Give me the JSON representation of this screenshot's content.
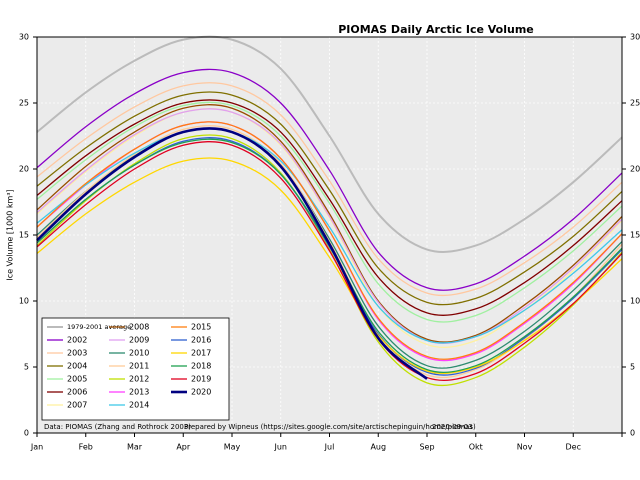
{
  "chart_data": {
    "type": "line",
    "title": "PIOMAS Daily Arctic Ice Volume",
    "y_label": "Ice Volume [1000 km³]",
    "notes": [
      "Data: PIOMAS (Zhang and Rothrock 2003)",
      "Prepared by Wipneus (https://sites.google.com/site/arctischepinguin/home/piomas)",
      "2020-09-03"
    ],
    "categories": [
      "Jan",
      "Feb",
      "Mar",
      "Apr",
      "May",
      "Jun",
      "Jul",
      "Aug",
      "Sep",
      "Okt",
      "Nov",
      "Dec",
      null
    ],
    "ylim": [
      0,
      30
    ],
    "yticks": [
      0,
      5,
      10,
      15,
      20,
      25,
      30
    ],
    "grid": true,
    "series": [
      {
        "name": "1979-2001 average",
        "color": "#bbbbbb",
        "width": 2,
        "values": [
          22.8,
          25.8,
          28.2,
          29.8,
          29.8,
          27.6,
          22.5,
          16.6,
          13.9,
          14.2,
          16.2,
          19.0,
          22.4
        ]
      },
      {
        "name": "2002",
        "color": "#8a00c8",
        "width": 1.3,
        "values": [
          20.1,
          23.2,
          25.7,
          27.3,
          27.3,
          25.0,
          19.9,
          13.7,
          11.0,
          11.3,
          13.4,
          16.2,
          19.7
        ]
      },
      {
        "name": "2003",
        "color": "#ffc8a0",
        "width": 1.3,
        "values": [
          19.4,
          22.3,
          24.7,
          26.3,
          26.3,
          24.1,
          19.1,
          13.2,
          10.6,
          10.9,
          12.9,
          15.6,
          19.0
        ]
      },
      {
        "name": "2004",
        "color": "#807000",
        "width": 1.3,
        "values": [
          18.7,
          21.6,
          24.0,
          25.6,
          25.6,
          23.4,
          18.4,
          12.5,
          9.9,
          10.2,
          12.2,
          14.9,
          18.3
        ]
      },
      {
        "name": "2005",
        "color": "#a0f0a0",
        "width": 1.3,
        "values": [
          17.7,
          20.7,
          23.2,
          24.8,
          24.8,
          22.5,
          17.4,
          11.3,
          8.6,
          8.9,
          11.0,
          13.8,
          17.2
        ]
      },
      {
        "name": "2006",
        "color": "#800000",
        "width": 1.3,
        "values": [
          18.0,
          21.0,
          23.4,
          25.0,
          25.0,
          22.8,
          17.7,
          11.8,
          9.1,
          9.4,
          11.4,
          14.2,
          17.6
        ]
      },
      {
        "name": "2007",
        "color": "#fff0a0",
        "width": 1.3,
        "values": [
          16.6,
          19.8,
          22.5,
          24.3,
          24.3,
          21.8,
          16.3,
          9.6,
          6.7,
          7.0,
          9.3,
          12.3,
          16.1
        ]
      },
      {
        "name": "2008",
        "color": "#994c00",
        "width": 1.3,
        "values": [
          16.9,
          20.2,
          22.8,
          24.6,
          24.6,
          22.1,
          16.6,
          10.0,
          7.1,
          7.4,
          9.7,
          12.7,
          16.4
        ]
      },
      {
        "name": "2009",
        "color": "#e0a0f0",
        "width": 1.3,
        "values": [
          16.7,
          19.9,
          22.6,
          24.3,
          24.3,
          21.9,
          16.4,
          9.9,
          7.0,
          7.3,
          9.5,
          12.5,
          16.2
        ]
      },
      {
        "name": "2010",
        "color": "#2e8b70",
        "width": 1.3,
        "values": [
          15.0,
          18.3,
          21.0,
          22.8,
          22.8,
          20.3,
          14.7,
          8.1,
          5.1,
          5.5,
          7.7,
          10.8,
          14.5
        ]
      },
      {
        "name": "2011",
        "color": "#ffcc99",
        "width": 1.3,
        "values": [
          14.8,
          18.3,
          21.1,
          23.0,
          23.0,
          20.4,
          14.5,
          7.5,
          4.4,
          4.8,
          7.1,
          10.3,
          14.3
        ]
      },
      {
        "name": "2012",
        "color": "#c0e000",
        "width": 1.3,
        "values": [
          14.2,
          17.6,
          20.4,
          22.3,
          22.3,
          19.7,
          13.9,
          6.9,
          3.8,
          4.2,
          6.5,
          9.7,
          13.7
        ]
      },
      {
        "name": "2013",
        "color": "#ff40ff",
        "width": 1.3,
        "values": [
          15.6,
          18.8,
          21.5,
          23.3,
          23.3,
          20.8,
          15.3,
          8.6,
          5.7,
          6.0,
          8.3,
          11.3,
          15.1
        ]
      },
      {
        "name": "2014",
        "color": "#40c8e8",
        "width": 1.3,
        "values": [
          15.9,
          18.8,
          21.2,
          22.8,
          22.8,
          20.6,
          15.6,
          9.6,
          7.0,
          7.3,
          9.3,
          12.1,
          15.4
        ]
      },
      {
        "name": "2015",
        "color": "#ff7f10",
        "width": 1.3,
        "values": [
          15.6,
          18.9,
          21.5,
          23.3,
          23.3,
          20.8,
          15.3,
          8.7,
          5.8,
          6.1,
          8.4,
          11.4,
          15.1
        ]
      },
      {
        "name": "2016",
        "color": "#3060d0",
        "width": 1.3,
        "values": [
          14.4,
          17.7,
          20.3,
          22.1,
          22.1,
          19.6,
          14.1,
          7.5,
          4.6,
          4.9,
          7.2,
          10.2,
          13.9
        ]
      },
      {
        "name": "2017",
        "color": "#ffd700",
        "width": 1.3,
        "values": [
          13.6,
          16.6,
          19.0,
          20.6,
          20.6,
          18.4,
          13.3,
          7.4,
          4.7,
          5.0,
          7.0,
          9.8,
          13.2
        ]
      },
      {
        "name": "2018",
        "color": "#20a050",
        "width": 1.3,
        "values": [
          14.4,
          17.7,
          20.3,
          22.0,
          22.0,
          19.6,
          14.2,
          7.7,
          4.8,
          5.1,
          7.3,
          10.3,
          14.0
        ]
      },
      {
        "name": "2019",
        "color": "#e00020",
        "width": 1.3,
        "values": [
          14.1,
          17.3,
          20.0,
          21.8,
          21.8,
          19.3,
          13.8,
          7.1,
          4.2,
          4.5,
          6.8,
          9.8,
          13.6
        ]
      },
      {
        "name": "2020",
        "color": "#000080",
        "width": 2.6,
        "values": [
          14.6,
          18.1,
          20.9,
          22.8,
          22.8,
          20.2,
          14.3,
          7.2,
          4.1,
          null,
          null,
          null,
          null
        ]
      }
    ]
  }
}
